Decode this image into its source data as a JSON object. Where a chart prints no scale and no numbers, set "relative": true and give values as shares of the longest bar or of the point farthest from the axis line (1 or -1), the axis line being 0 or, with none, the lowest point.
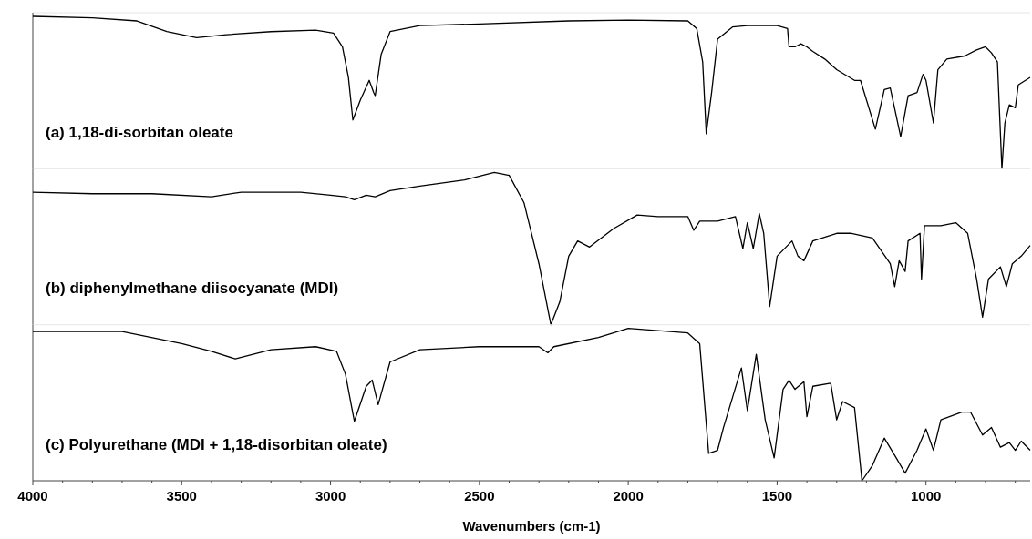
{
  "chart_data": [
    {
      "type": "line",
      "relative": true,
      "xlim": [
        4000,
        650
      ],
      "tick_labels": false,
      "annotations": [
        "(a) 1,18-di-sorbitan oleate"
      ],
      "series": [
        {
          "color": "#000000",
          "x": [
            4000,
            3800,
            3650,
            3550,
            3450,
            3350,
            3200,
            3050,
            2990,
            2960,
            2940,
            2925,
            2900,
            2870,
            2855,
            2850,
            2830,
            2800,
            2700,
            2500,
            2200,
            2000,
            1800,
            1770,
            1750,
            1738,
            1720,
            1700,
            1650,
            1600,
            1500,
            1465,
            1460,
            1440,
            1420,
            1400,
            1380,
            1340,
            1300,
            1240,
            1220,
            1170,
            1140,
            1120,
            1085,
            1060,
            1030,
            1010,
            1000,
            975,
            960,
            930,
            870,
            830,
            800,
            780,
            760,
            745,
            735,
            720,
            700,
            690,
            650
          ],
          "values": [
            1,
            0.99,
            0.97,
            0.9,
            0.86,
            0.88,
            0.9,
            0.91,
            0.89,
            0.8,
            0.6,
            0.32,
            0.45,
            0.58,
            0.5,
            0.48,
            0.75,
            0.9,
            0.94,
            0.95,
            0.97,
            0.975,
            0.97,
            0.92,
            0.7,
            0.23,
            0.5,
            0.85,
            0.93,
            0.94,
            0.94,
            0.92,
            0.8,
            0.8,
            0.82,
            0.8,
            0.77,
            0.72,
            0.65,
            0.58,
            0.58,
            0.26,
            0.52,
            0.53,
            0.21,
            0.48,
            0.5,
            0.62,
            0.58,
            0.3,
            0.65,
            0.72,
            0.74,
            0.78,
            0.8,
            0.76,
            0.7,
            0,
            0.3,
            0.42,
            0.4,
            0.55,
            0.6
          ]
        }
      ]
    },
    {
      "type": "line",
      "relative": true,
      "xlim": [
        4000,
        650
      ],
      "tick_labels": false,
      "annotations": [
        "(b) diphenylmethane diisocyanate (MDI)"
      ],
      "series": [
        {
          "color": "#000000",
          "x": [
            4000,
            3800,
            3600,
            3400,
            3300,
            3100,
            3000,
            2950,
            2920,
            2880,
            2850,
            2800,
            2700,
            2550,
            2450,
            2400,
            2350,
            2300,
            2260,
            2230,
            2200,
            2170,
            2130,
            2050,
            1970,
            1900,
            1800,
            1780,
            1760,
            1700,
            1640,
            1615,
            1600,
            1580,
            1560,
            1545,
            1525,
            1500,
            1450,
            1430,
            1410,
            1380,
            1300,
            1250,
            1180,
            1120,
            1105,
            1090,
            1070,
            1060,
            1020,
            1015,
            1005,
            950,
            900,
            860,
            830,
            810,
            790,
            750,
            730,
            710,
            680,
            650
          ],
          "values": [
            0.87,
            0.86,
            0.86,
            0.84,
            0.87,
            0.87,
            0.85,
            0.84,
            0.82,
            0.85,
            0.84,
            0.88,
            0.91,
            0.95,
            1,
            0.98,
            0.8,
            0.4,
            0,
            0.15,
            0.45,
            0.55,
            0.51,
            0.63,
            0.72,
            0.71,
            0.71,
            0.62,
            0.68,
            0.68,
            0.71,
            0.5,
            0.67,
            0.5,
            0.73,
            0.6,
            0.12,
            0.45,
            0.55,
            0.45,
            0.42,
            0.55,
            0.6,
            0.6,
            0.57,
            0.4,
            0.25,
            0.42,
            0.35,
            0.55,
            0.6,
            0.3,
            0.65,
            0.65,
            0.67,
            0.6,
            0.3,
            0.05,
            0.3,
            0.38,
            0.25,
            0.4,
            0.45,
            0.52
          ]
        }
      ]
    },
    {
      "type": "line",
      "relative": true,
      "xlim": [
        4000,
        650
      ],
      "tick_labels": "x",
      "xlabel": "Wavenumbers (cm-1)",
      "annotations": [
        "(c) Polyurethane (MDI + 1,18-disorbitan oleate)"
      ],
      "xticks": [
        4000,
        {
          "value": 3900,
          "label": null
        },
        {
          "value": 3800,
          "label": null
        },
        {
          "value": 3700,
          "label": null
        },
        {
          "value": 3600,
          "label": null
        },
        3500,
        {
          "value": 3400,
          "label": null
        },
        {
          "value": 3300,
          "label": null
        },
        {
          "value": 3200,
          "label": null
        },
        {
          "value": 3100,
          "label": null
        },
        3000,
        {
          "value": 2900,
          "label": null
        },
        {
          "value": 2800,
          "label": null
        },
        {
          "value": 2700,
          "label": null
        },
        {
          "value": 2600,
          "label": null
        },
        2500,
        {
          "value": 2400,
          "label": null
        },
        {
          "value": 2300,
          "label": null
        },
        {
          "value": 2200,
          "label": null
        },
        {
          "value": 2100,
          "label": null
        },
        2000,
        {
          "value": 1900,
          "label": null
        },
        {
          "value": 1800,
          "label": null
        },
        {
          "value": 1700,
          "label": null
        },
        {
          "value": 1600,
          "label": null
        },
        1500,
        {
          "value": 1400,
          "label": null
        },
        {
          "value": 1300,
          "label": null
        },
        {
          "value": 1200,
          "label": null
        },
        {
          "value": 1100,
          "label": null
        },
        1000,
        {
          "value": 900,
          "label": null
        },
        {
          "value": 800,
          "label": null
        },
        {
          "value": 700,
          "label": null
        }
      ],
      "series": [
        {
          "color": "#000000",
          "x": [
            4000,
            3700,
            3500,
            3400,
            3320,
            3200,
            3050,
            2980,
            2950,
            2920,
            2880,
            2860,
            2840,
            2800,
            2700,
            2500,
            2300,
            2270,
            2250,
            2100,
            2000,
            1800,
            1760,
            1730,
            1700,
            1680,
            1620,
            1600,
            1570,
            1540,
            1510,
            1480,
            1460,
            1440,
            1410,
            1400,
            1380,
            1320,
            1300,
            1280,
            1240,
            1215,
            1180,
            1140,
            1100,
            1070,
            1030,
            1000,
            975,
            950,
            880,
            850,
            810,
            780,
            750,
            720,
            700,
            680,
            650
          ],
          "values": [
            0.98,
            0.98,
            0.9,
            0.85,
            0.8,
            0.86,
            0.88,
            0.85,
            0.7,
            0.39,
            0.62,
            0.66,
            0.5,
            0.78,
            0.86,
            0.88,
            0.88,
            0.84,
            0.88,
            0.94,
            1,
            0.97,
            0.9,
            0.18,
            0.2,
            0.35,
            0.74,
            0.46,
            0.83,
            0.4,
            0.15,
            0.6,
            0.66,
            0.6,
            0.65,
            0.42,
            0.62,
            0.64,
            0.4,
            0.52,
            0.48,
            0,
            0.1,
            0.28,
            0.15,
            0.05,
            0.2,
            0.34,
            0.2,
            0.4,
            0.45,
            0.45,
            0.3,
            0.35,
            0.22,
            0.25,
            0.2,
            0.26,
            0.2
          ]
        }
      ]
    }
  ]
}
